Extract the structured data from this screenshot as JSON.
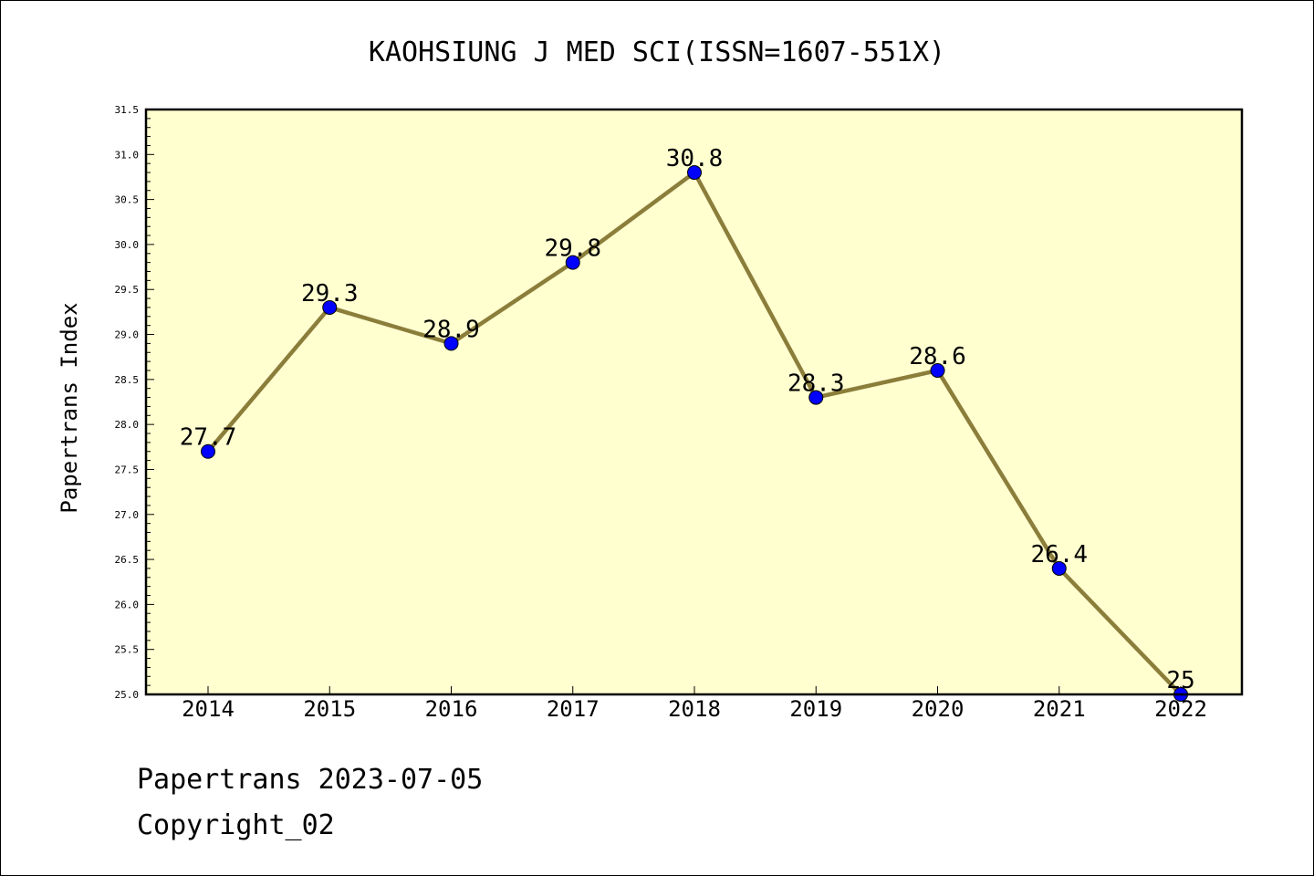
{
  "chart_data": {
    "type": "line",
    "title": "KAOHSIUNG J MED SCI(ISSN=1607-551X)",
    "xlabel": "",
    "ylabel": "Papertrans Index",
    "categories": [
      "2014",
      "2015",
      "2016",
      "2017",
      "2018",
      "2019",
      "2020",
      "2021",
      "2022"
    ],
    "values": [
      27.7,
      29.3,
      28.9,
      29.8,
      30.8,
      28.3,
      28.6,
      26.4,
      25
    ],
    "data_labels": [
      "27.7",
      "29.3",
      "28.9",
      "29.8",
      "30.8",
      "28.3",
      "28.6",
      "26.4",
      "25"
    ],
    "ylim": [
      25.0,
      31.5
    ],
    "yticks": [
      "25.0",
      "25.5",
      "26.0",
      "26.5",
      "27.0",
      "27.5",
      "28.0",
      "28.5",
      "29.0",
      "29.5",
      "30.0",
      "30.5",
      "31.0",
      "31.5"
    ],
    "grid": false,
    "colors": {
      "plot_background": "#FFFFD0",
      "line": "#8B7D3A",
      "marker": "#0000FF"
    }
  },
  "footer": {
    "line1": "Papertrans 2023-07-05",
    "line2": "Copyright_02"
  }
}
